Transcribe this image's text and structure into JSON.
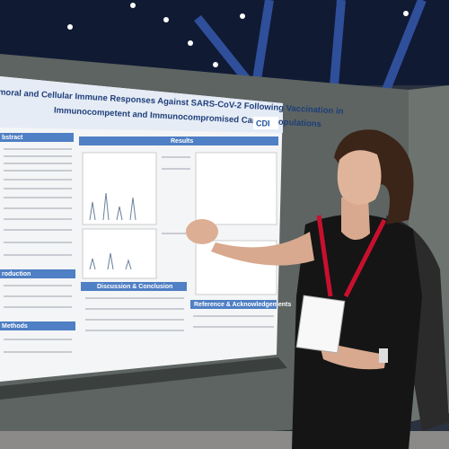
{
  "poster": {
    "title_line1": "moral and Cellular Immune Responses Against SARS-CoV-2 Following Vaccination in",
    "title_line2": "Immunocompetent and Immunocompromised Cancer Populations",
    "logo": "CDI",
    "sections": [
      "bstract",
      "Results",
      "roduction",
      "Methods",
      "Discussion & Conclusion",
      "Reference & Acknowledgements"
    ]
  }
}
